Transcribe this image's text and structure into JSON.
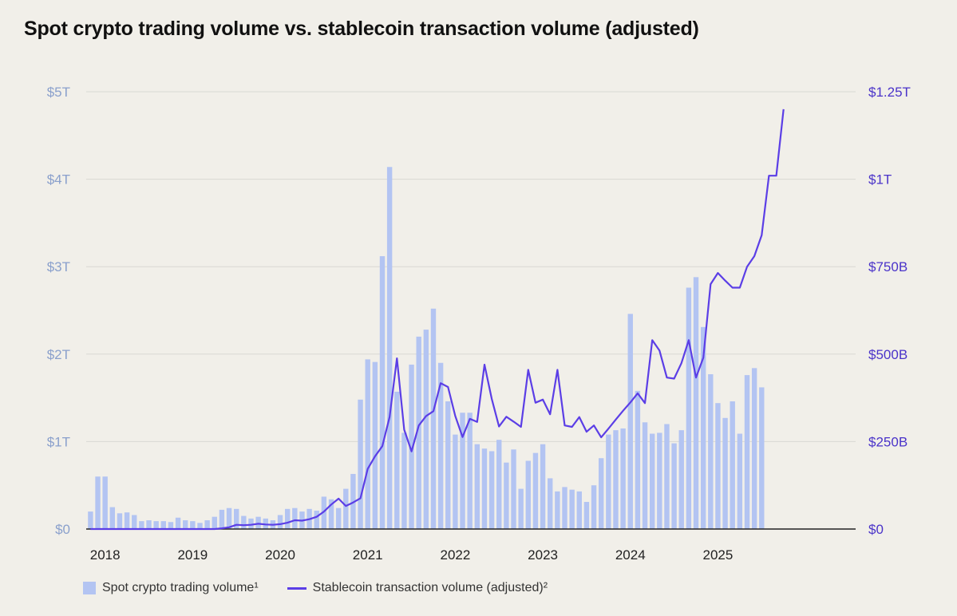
{
  "chart_data": {
    "type": "bar+line",
    "title": "Spot crypto trading volume vs. stablecoin transaction volume (adjusted)",
    "x_tick_labels": [
      "2018",
      "2019",
      "2020",
      "2021",
      "2022",
      "2023",
      "2024",
      "2025"
    ],
    "y_left": {
      "ylim": [
        0,
        5
      ],
      "unit": "trillion USD",
      "tick_labels": [
        "$0",
        "$1T",
        "$2T",
        "$3T",
        "$4T",
        "$5T"
      ]
    },
    "y_right": {
      "ylim": [
        0,
        1250
      ],
      "unit": "billion USD",
      "tick_labels": [
        "$0",
        "$250B",
        "$500B",
        "$750B",
        "$1T",
        "$1.25T"
      ]
    },
    "start_period": "2018-01",
    "series": [
      {
        "name": "Spot crypto trading volume¹",
        "type": "bar",
        "axis": "left",
        "color": "#b3c4f2",
        "values": [
          0.2,
          0.6,
          0.6,
          0.25,
          0.18,
          0.19,
          0.16,
          0.09,
          0.1,
          0.09,
          0.09,
          0.08,
          0.13,
          0.1,
          0.09,
          0.07,
          0.1,
          0.14,
          0.22,
          0.24,
          0.23,
          0.15,
          0.12,
          0.14,
          0.12,
          0.1,
          0.16,
          0.23,
          0.24,
          0.2,
          0.23,
          0.21,
          0.37,
          0.34,
          0.24,
          0.46,
          0.63,
          1.48,
          1.94,
          1.91,
          3.12,
          4.14,
          1.57,
          1.1,
          1.88,
          2.2,
          2.28,
          2.52,
          1.9,
          1.46,
          1.08,
          1.33,
          1.33,
          0.97,
          0.92,
          0.89,
          1.02,
          0.76,
          0.91,
          0.46,
          0.78,
          0.87,
          0.97,
          0.58,
          0.43,
          0.48,
          0.45,
          0.43,
          0.31,
          0.5,
          0.81,
          1.08,
          1.13,
          1.15,
          2.46,
          1.58,
          1.22,
          1.09,
          1.1,
          1.2,
          0.98,
          1.13,
          2.76,
          2.88,
          2.31,
          1.77,
          1.44,
          1.27,
          1.46,
          1.09,
          1.76,
          1.84,
          1.62
        ]
      },
      {
        "name": "Stablecoin transaction volume (adjusted)²",
        "type": "line",
        "axis": "right",
        "color": "#5b3ee6",
        "values": [
          0,
          0,
          0,
          0,
          0,
          0,
          0,
          0,
          0,
          0,
          0,
          0,
          0,
          0,
          0,
          0,
          0,
          0,
          2,
          5,
          12,
          11,
          12,
          15,
          13,
          12,
          14,
          18,
          25,
          24,
          28,
          35,
          50,
          70,
          87,
          66,
          76,
          88,
          172,
          208,
          237,
          320,
          488,
          284,
          222,
          296,
          323,
          337,
          417,
          406,
          323,
          263,
          315,
          306,
          470,
          372,
          293,
          321,
          307,
          292,
          455,
          361,
          370,
          328,
          455,
          296,
          292,
          320,
          278,
          296,
          262,
          287,
          313,
          338,
          362,
          388,
          360,
          540,
          510,
          433,
          430,
          474,
          540,
          433,
          490,
          700,
          732,
          710,
          690,
          690,
          750,
          780,
          840,
          1010,
          1010,
          1200
        ]
      }
    ]
  },
  "legend": {
    "bar_label": "Spot crypto trading volume¹",
    "line_label": "Stablecoin transaction volume (adjusted)²"
  }
}
